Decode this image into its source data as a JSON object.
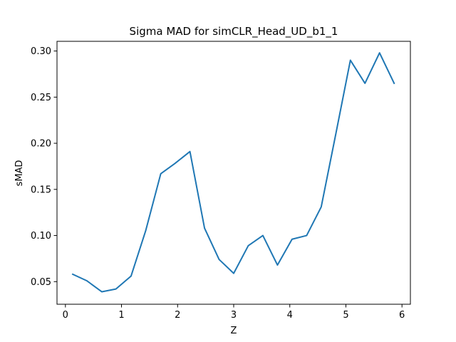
{
  "chart_data": {
    "type": "line",
    "title": "Sigma MAD for simCLR_Head_UD_b1_1",
    "xlabel": "Z",
    "ylabel": "sMAD",
    "xlim": [
      -0.15,
      6.15
    ],
    "ylim": [
      0.0255,
      0.3105
    ],
    "x_ticks": [
      0,
      1,
      2,
      3,
      4,
      5,
      6
    ],
    "x_tick_labels": [
      "0",
      "1",
      "2",
      "3",
      "4",
      "5",
      "6"
    ],
    "y_ticks": [
      0.05,
      0.1,
      0.15,
      0.2,
      0.25,
      0.3
    ],
    "y_tick_labels": [
      "0.05",
      "0.10",
      "0.15",
      "0.20",
      "0.25",
      "0.30"
    ],
    "grid": false,
    "series": [
      {
        "color": "#1f77b4",
        "x": [
          0.13,
          0.38,
          0.65,
          0.9,
          1.17,
          1.43,
          1.7,
          1.95,
          2.22,
          2.48,
          2.74,
          3.0,
          3.26,
          3.52,
          3.78,
          4.04,
          4.3,
          4.56,
          4.82,
          5.08,
          5.34,
          5.6,
          5.86
        ],
        "y": [
          0.058,
          0.051,
          0.039,
          0.042,
          0.056,
          0.105,
          0.167,
          0.178,
          0.191,
          0.108,
          0.074,
          0.059,
          0.089,
          0.1,
          0.068,
          0.096,
          0.1,
          0.131,
          0.21,
          0.29,
          0.265,
          0.298,
          0.265
        ]
      }
    ]
  }
}
